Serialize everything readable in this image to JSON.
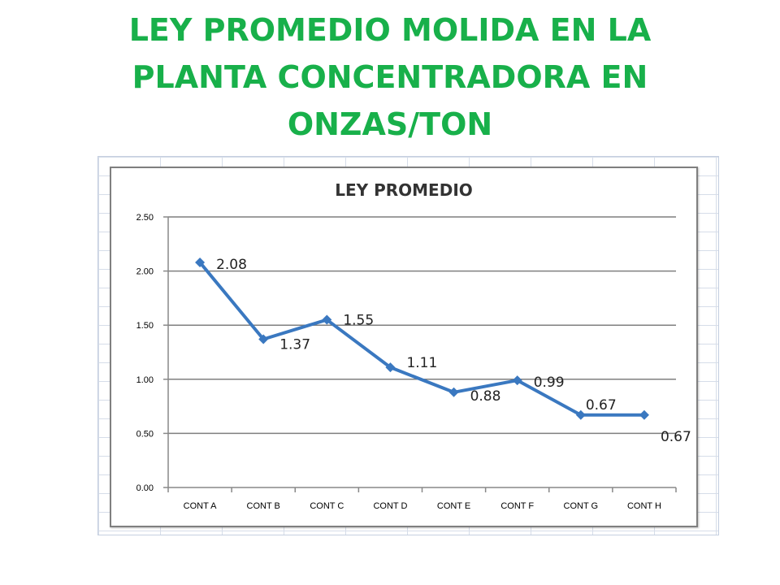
{
  "slide": {
    "title_lines": [
      "LEY PROMEDIO MOLIDA EN LA",
      "PLANTA CONCENTRADORA EN",
      "ONZAS/TON"
    ],
    "title_color": "#18b04a"
  },
  "chart_data": {
    "type": "line",
    "title": "LEY PROMEDIO",
    "categories": [
      "CONT A",
      "CONT B",
      "CONT C",
      "CONT D",
      "CONT E",
      "CONT F",
      "CONT G",
      "CONT H"
    ],
    "series": [
      {
        "values": [
          2.08,
          1.37,
          1.55,
          1.11,
          0.88,
          0.99,
          0.67,
          0.67
        ],
        "color": "#3a78c0"
      }
    ],
    "data_labels": [
      "2.08",
      "1.37",
      "1.55",
      "1.11",
      "0.88",
      "0.99",
      "0.67",
      "0.67"
    ],
    "ytick_labels": [
      "0.00",
      "0.50",
      "1.00",
      "1.50",
      "2.00",
      "2.50"
    ],
    "ylim": [
      0,
      2.5
    ],
    "xlabel": "",
    "ylabel": "",
    "grid": true,
    "legend": "none",
    "marker": "diamond"
  }
}
